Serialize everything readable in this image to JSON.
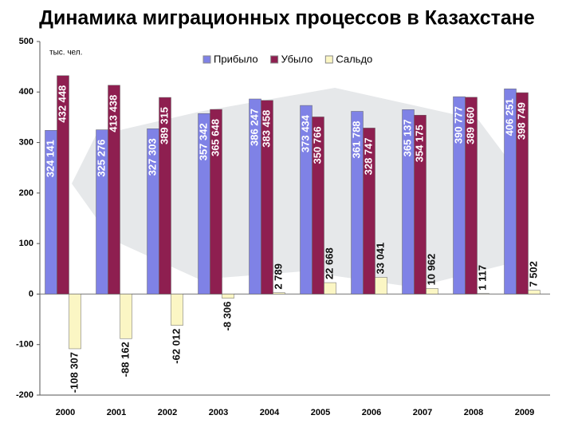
{
  "chart_data": {
    "type": "bar",
    "title": "Динамика миграционных процессов в Казахстане",
    "unit_label": "тыс. чел.",
    "categories": [
      "2000",
      "2001",
      "2002",
      "2003",
      "2004",
      "2005",
      "2006",
      "2007",
      "2008",
      "2009"
    ],
    "series": [
      {
        "name": "Прибыло",
        "color": "#7f82e6",
        "values": [
          324.141,
          325.276,
          327.303,
          357.342,
          386.247,
          373.434,
          361.788,
          365.137,
          390.777,
          406.251
        ],
        "value_labels": [
          "324 141",
          "325 276",
          "327 303",
          "357 342",
          "386 247",
          "373 434",
          "361 788",
          "365 137",
          "390 777",
          "406 251"
        ]
      },
      {
        "name": "Убыло",
        "color": "#8e1f50",
        "values": [
          432.448,
          413.438,
          389.315,
          365.648,
          383.458,
          350.766,
          328.747,
          354.175,
          389.66,
          398.749
        ],
        "value_labels": [
          "432 448",
          "413 438",
          "389 315",
          "365 648",
          "383 458",
          "350 766",
          "328 747",
          "354 175",
          "389 660",
          "398 749"
        ]
      },
      {
        "name": "Сальдо",
        "color": "#fbf6c4",
        "values": [
          -108.307,
          -88.162,
          -62.012,
          -8.306,
          2.789,
          22.668,
          33.041,
          10.962,
          1.117,
          7.502
        ],
        "value_labels": [
          "-108 307",
          "-88 162",
          "-62 012",
          "-8 306",
          "2 789",
          "22 668",
          "33 041",
          "10 962",
          "1 117",
          "7 502"
        ]
      }
    ],
    "ylim": [
      -200,
      500
    ],
    "yticks": [
      -200,
      -100,
      0,
      100,
      200,
      300,
      400,
      500
    ],
    "grid": false
  }
}
